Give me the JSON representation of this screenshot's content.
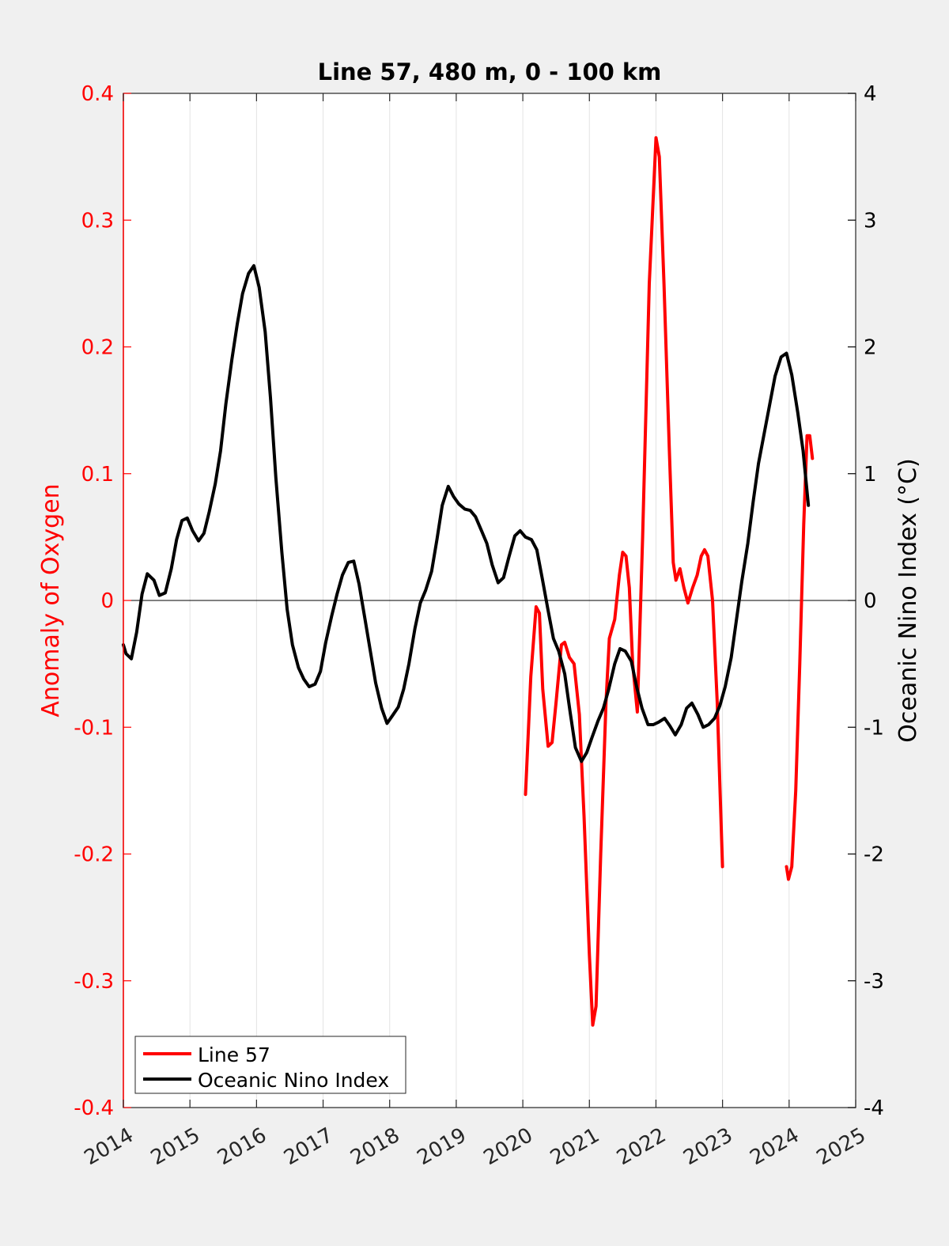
{
  "chart_data": {
    "type": "line",
    "title": "Line 57, 480 m, 0 - 100 km",
    "xlim": [
      2014,
      2025
    ],
    "x_ticks": [
      "2014",
      "2015",
      "2016",
      "2017",
      "2018",
      "2019",
      "2020",
      "2021",
      "2022",
      "2023",
      "2024",
      "2025"
    ],
    "left_axis": {
      "label": "Anomaly of Oxygen",
      "ylim": [
        -0.4,
        0.4
      ],
      "ticks": [
        "-0.4",
        "-0.3",
        "-0.2",
        "-0.1",
        "0",
        "0.1",
        "0.2",
        "0.3",
        "0.4"
      ],
      "color": "#ff0000"
    },
    "right_axis": {
      "label": "Oceanic Nino Index (°C)",
      "ylim": [
        -4,
        4
      ],
      "ticks": [
        "-4",
        "-3",
        "-2",
        "-1",
        "0",
        "1",
        "2",
        "3",
        "4"
      ],
      "color": "#000000"
    },
    "grid": "vertical",
    "zero_line": true,
    "legend_position": "bottom-left",
    "series": [
      {
        "name": "Line 57",
        "axis": "left",
        "color": "#ff0000",
        "segments": [
          [
            [
              2020.04,
              -0.153
            ],
            [
              2020.12,
              -0.06
            ],
            [
              2020.2,
              -0.005
            ],
            [
              2020.25,
              -0.01
            ],
            [
              2020.3,
              -0.07
            ],
            [
              2020.38,
              -0.115
            ],
            [
              2020.44,
              -0.112
            ],
            [
              2020.5,
              -0.08
            ],
            [
              2020.58,
              -0.035
            ],
            [
              2020.63,
              -0.033
            ],
            [
              2020.7,
              -0.045
            ],
            [
              2020.77,
              -0.05
            ],
            [
              2020.85,
              -0.09
            ],
            [
              2020.92,
              -0.17
            ],
            [
              2021.0,
              -0.28
            ],
            [
              2021.05,
              -0.335
            ],
            [
              2021.1,
              -0.32
            ],
            [
              2021.17,
              -0.2
            ],
            [
              2021.25,
              -0.08
            ],
            [
              2021.3,
              -0.03
            ],
            [
              2021.38,
              -0.015
            ],
            [
              2021.45,
              0.02
            ],
            [
              2021.5,
              0.038
            ],
            [
              2021.55,
              0.035
            ],
            [
              2021.6,
              0.01
            ],
            [
              2021.65,
              -0.05
            ],
            [
              2021.72,
              -0.088
            ],
            [
              2021.8,
              0.05
            ],
            [
              2021.9,
              0.25
            ],
            [
              2022.0,
              0.365
            ],
            [
              2022.05,
              0.35
            ],
            [
              2022.12,
              0.25
            ],
            [
              2022.2,
              0.12
            ],
            [
              2022.26,
              0.03
            ],
            [
              2022.3,
              0.016
            ],
            [
              2022.36,
              0.025
            ],
            [
              2022.42,
              0.01
            ],
            [
              2022.48,
              -0.002
            ],
            [
              2022.55,
              0.01
            ],
            [
              2022.62,
              0.02
            ],
            [
              2022.68,
              0.035
            ],
            [
              2022.73,
              0.04
            ],
            [
              2022.78,
              0.035
            ],
            [
              2022.85,
              0.0
            ],
            [
              2022.92,
              -0.08
            ],
            [
              2023.0,
              -0.21
            ]
          ],
          [
            [
              2023.96,
              -0.21
            ],
            [
              2023.99,
              -0.22
            ],
            [
              2024.04,
              -0.21
            ],
            [
              2024.1,
              -0.15
            ],
            [
              2024.16,
              -0.05
            ],
            [
              2024.22,
              0.06
            ],
            [
              2024.27,
              0.13
            ],
            [
              2024.31,
              0.13
            ],
            [
              2024.35,
              0.112
            ]
          ]
        ]
      },
      {
        "name": "Oceanic Nino Index",
        "axis": "right",
        "color": "#000000",
        "segments": [
          [
            [
              2014.0,
              -0.35
            ],
            [
              2014.04,
              -0.42
            ],
            [
              2014.12,
              -0.46
            ],
            [
              2014.2,
              -0.25
            ],
            [
              2014.28,
              0.05
            ],
            [
              2014.36,
              0.21
            ],
            [
              2014.46,
              0.16
            ],
            [
              2014.54,
              0.04
            ],
            [
              2014.63,
              0.06
            ],
            [
              2014.72,
              0.25
            ],
            [
              2014.8,
              0.48
            ],
            [
              2014.88,
              0.63
            ],
            [
              2014.96,
              0.65
            ],
            [
              2015.04,
              0.55
            ],
            [
              2015.13,
              0.47
            ],
            [
              2015.21,
              0.53
            ],
            [
              2015.29,
              0.7
            ],
            [
              2015.38,
              0.92
            ],
            [
              2015.46,
              1.18
            ],
            [
              2015.54,
              1.55
            ],
            [
              2015.63,
              1.9
            ],
            [
              2015.71,
              2.18
            ],
            [
              2015.79,
              2.42
            ],
            [
              2015.88,
              2.58
            ],
            [
              2015.96,
              2.64
            ],
            [
              2016.04,
              2.47
            ],
            [
              2016.13,
              2.12
            ],
            [
              2016.21,
              1.6
            ],
            [
              2016.29,
              0.97
            ],
            [
              2016.38,
              0.38
            ],
            [
              2016.46,
              -0.07
            ],
            [
              2016.54,
              -0.35
            ],
            [
              2016.63,
              -0.53
            ],
            [
              2016.71,
              -0.62
            ],
            [
              2016.79,
              -0.68
            ],
            [
              2016.88,
              -0.66
            ],
            [
              2016.96,
              -0.56
            ],
            [
              2017.04,
              -0.33
            ],
            [
              2017.13,
              -0.12
            ],
            [
              2017.21,
              0.05
            ],
            [
              2017.29,
              0.2
            ],
            [
              2017.38,
              0.3
            ],
            [
              2017.46,
              0.31
            ],
            [
              2017.54,
              0.13
            ],
            [
              2017.63,
              -0.15
            ],
            [
              2017.71,
              -0.4
            ],
            [
              2017.79,
              -0.65
            ],
            [
              2017.88,
              -0.85
            ],
            [
              2017.96,
              -0.97
            ],
            [
              2018.04,
              -0.91
            ],
            [
              2018.13,
              -0.84
            ],
            [
              2018.21,
              -0.7
            ],
            [
              2018.29,
              -0.5
            ],
            [
              2018.38,
              -0.22
            ],
            [
              2018.46,
              -0.02
            ],
            [
              2018.54,
              0.08
            ],
            [
              2018.63,
              0.23
            ],
            [
              2018.71,
              0.48
            ],
            [
              2018.79,
              0.75
            ],
            [
              2018.88,
              0.9
            ],
            [
              2018.96,
              0.82
            ],
            [
              2019.04,
              0.76
            ],
            [
              2019.13,
              0.72
            ],
            [
              2019.21,
              0.71
            ],
            [
              2019.29,
              0.66
            ],
            [
              2019.38,
              0.55
            ],
            [
              2019.46,
              0.45
            ],
            [
              2019.54,
              0.28
            ],
            [
              2019.63,
              0.14
            ],
            [
              2019.71,
              0.18
            ],
            [
              2019.79,
              0.34
            ],
            [
              2019.88,
              0.51
            ],
            [
              2019.96,
              0.55
            ],
            [
              2020.04,
              0.5
            ],
            [
              2020.13,
              0.48
            ],
            [
              2020.21,
              0.4
            ],
            [
              2020.29,
              0.18
            ],
            [
              2020.38,
              -0.08
            ],
            [
              2020.46,
              -0.3
            ],
            [
              2020.54,
              -0.4
            ],
            [
              2020.63,
              -0.58
            ],
            [
              2020.71,
              -0.88
            ],
            [
              2020.79,
              -1.16
            ],
            [
              2020.88,
              -1.27
            ],
            [
              2020.96,
              -1.2
            ],
            [
              2021.04,
              -1.08
            ],
            [
              2021.13,
              -0.95
            ],
            [
              2021.21,
              -0.85
            ],
            [
              2021.29,
              -0.7
            ],
            [
              2021.38,
              -0.5
            ],
            [
              2021.46,
              -0.38
            ],
            [
              2021.54,
              -0.4
            ],
            [
              2021.63,
              -0.48
            ],
            [
              2021.71,
              -0.68
            ],
            [
              2021.79,
              -0.85
            ],
            [
              2021.88,
              -0.98
            ],
            [
              2021.96,
              -0.98
            ],
            [
              2022.04,
              -0.96
            ],
            [
              2022.13,
              -0.93
            ],
            [
              2022.21,
              -0.99
            ],
            [
              2022.29,
              -1.06
            ],
            [
              2022.38,
              -0.98
            ],
            [
              2022.46,
              -0.85
            ],
            [
              2022.54,
              -0.81
            ],
            [
              2022.63,
              -0.9
            ],
            [
              2022.71,
              -1.0
            ],
            [
              2022.79,
              -0.98
            ],
            [
              2022.88,
              -0.93
            ],
            [
              2022.96,
              -0.83
            ],
            [
              2023.04,
              -0.68
            ],
            [
              2023.13,
              -0.45
            ],
            [
              2023.21,
              -0.15
            ],
            [
              2023.29,
              0.15
            ],
            [
              2023.38,
              0.45
            ],
            [
              2023.46,
              0.78
            ],
            [
              2023.54,
              1.08
            ],
            [
              2023.63,
              1.33
            ],
            [
              2023.71,
              1.55
            ],
            [
              2023.79,
              1.77
            ],
            [
              2023.88,
              1.92
            ],
            [
              2023.96,
              1.95
            ],
            [
              2024.04,
              1.78
            ],
            [
              2024.13,
              1.48
            ],
            [
              2024.21,
              1.18
            ],
            [
              2024.29,
              0.75
            ]
          ]
        ]
      }
    ]
  }
}
